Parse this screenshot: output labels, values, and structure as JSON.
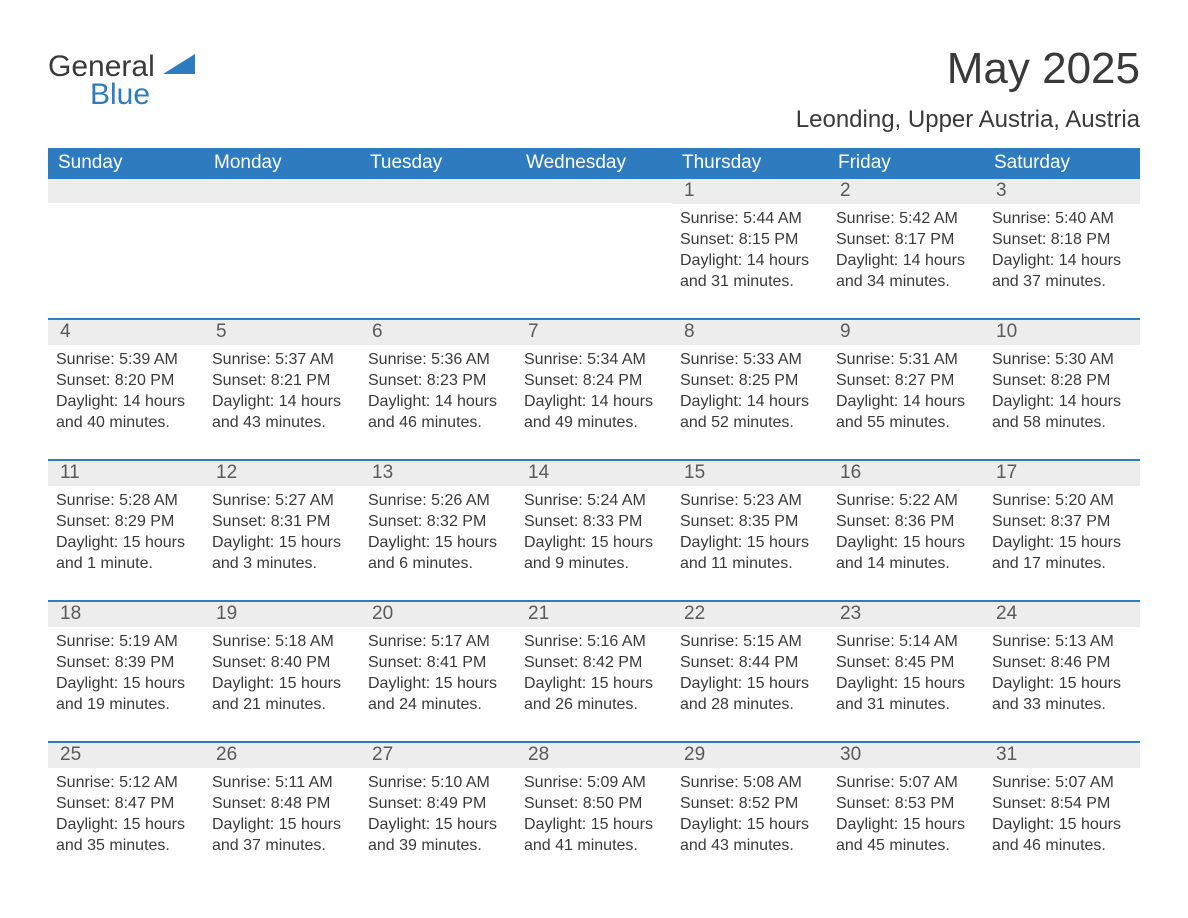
{
  "logo": {
    "word1": "General",
    "word2": "Blue",
    "tri_color": "#2e7cbf"
  },
  "title": "May 2025",
  "location": "Leonding, Upper Austria, Austria",
  "colors": {
    "header_bg": "#2e7cbf",
    "header_text": "#ffffff",
    "daynum_bg": "#ededed",
    "text": "#3a3a3a",
    "rule": "#2e7cbf",
    "page_bg": "#ffffff"
  },
  "layout": {
    "columns": 7,
    "rows": 5,
    "cell_font_size_pt": 12,
    "title_font_size_pt": 33,
    "location_font_size_pt": 18
  },
  "days_of_week": [
    "Sunday",
    "Monday",
    "Tuesday",
    "Wednesday",
    "Thursday",
    "Friday",
    "Saturday"
  ],
  "weeks": [
    [
      {
        "empty": true
      },
      {
        "empty": true
      },
      {
        "empty": true
      },
      {
        "empty": true
      },
      {
        "n": "1",
        "sunrise": "Sunrise: 5:44 AM",
        "sunset": "Sunset: 8:15 PM",
        "day1": "Daylight: 14 hours",
        "day2": "and 31 minutes."
      },
      {
        "n": "2",
        "sunrise": "Sunrise: 5:42 AM",
        "sunset": "Sunset: 8:17 PM",
        "day1": "Daylight: 14 hours",
        "day2": "and 34 minutes."
      },
      {
        "n": "3",
        "sunrise": "Sunrise: 5:40 AM",
        "sunset": "Sunset: 8:18 PM",
        "day1": "Daylight: 14 hours",
        "day2": "and 37 minutes."
      }
    ],
    [
      {
        "n": "4",
        "sunrise": "Sunrise: 5:39 AM",
        "sunset": "Sunset: 8:20 PM",
        "day1": "Daylight: 14 hours",
        "day2": "and 40 minutes."
      },
      {
        "n": "5",
        "sunrise": "Sunrise: 5:37 AM",
        "sunset": "Sunset: 8:21 PM",
        "day1": "Daylight: 14 hours",
        "day2": "and 43 minutes."
      },
      {
        "n": "6",
        "sunrise": "Sunrise: 5:36 AM",
        "sunset": "Sunset: 8:23 PM",
        "day1": "Daylight: 14 hours",
        "day2": "and 46 minutes."
      },
      {
        "n": "7",
        "sunrise": "Sunrise: 5:34 AM",
        "sunset": "Sunset: 8:24 PM",
        "day1": "Daylight: 14 hours",
        "day2": "and 49 minutes."
      },
      {
        "n": "8",
        "sunrise": "Sunrise: 5:33 AM",
        "sunset": "Sunset: 8:25 PM",
        "day1": "Daylight: 14 hours",
        "day2": "and 52 minutes."
      },
      {
        "n": "9",
        "sunrise": "Sunrise: 5:31 AM",
        "sunset": "Sunset: 8:27 PM",
        "day1": "Daylight: 14 hours",
        "day2": "and 55 minutes."
      },
      {
        "n": "10",
        "sunrise": "Sunrise: 5:30 AM",
        "sunset": "Sunset: 8:28 PM",
        "day1": "Daylight: 14 hours",
        "day2": "and 58 minutes."
      }
    ],
    [
      {
        "n": "11",
        "sunrise": "Sunrise: 5:28 AM",
        "sunset": "Sunset: 8:29 PM",
        "day1": "Daylight: 15 hours",
        "day2": "and 1 minute."
      },
      {
        "n": "12",
        "sunrise": "Sunrise: 5:27 AM",
        "sunset": "Sunset: 8:31 PM",
        "day1": "Daylight: 15 hours",
        "day2": "and 3 minutes."
      },
      {
        "n": "13",
        "sunrise": "Sunrise: 5:26 AM",
        "sunset": "Sunset: 8:32 PM",
        "day1": "Daylight: 15 hours",
        "day2": "and 6 minutes."
      },
      {
        "n": "14",
        "sunrise": "Sunrise: 5:24 AM",
        "sunset": "Sunset: 8:33 PM",
        "day1": "Daylight: 15 hours",
        "day2": "and 9 minutes."
      },
      {
        "n": "15",
        "sunrise": "Sunrise: 5:23 AM",
        "sunset": "Sunset: 8:35 PM",
        "day1": "Daylight: 15 hours",
        "day2": "and 11 minutes."
      },
      {
        "n": "16",
        "sunrise": "Sunrise: 5:22 AM",
        "sunset": "Sunset: 8:36 PM",
        "day1": "Daylight: 15 hours",
        "day2": "and 14 minutes."
      },
      {
        "n": "17",
        "sunrise": "Sunrise: 5:20 AM",
        "sunset": "Sunset: 8:37 PM",
        "day1": "Daylight: 15 hours",
        "day2": "and 17 minutes."
      }
    ],
    [
      {
        "n": "18",
        "sunrise": "Sunrise: 5:19 AM",
        "sunset": "Sunset: 8:39 PM",
        "day1": "Daylight: 15 hours",
        "day2": "and 19 minutes."
      },
      {
        "n": "19",
        "sunrise": "Sunrise: 5:18 AM",
        "sunset": "Sunset: 8:40 PM",
        "day1": "Daylight: 15 hours",
        "day2": "and 21 minutes."
      },
      {
        "n": "20",
        "sunrise": "Sunrise: 5:17 AM",
        "sunset": "Sunset: 8:41 PM",
        "day1": "Daylight: 15 hours",
        "day2": "and 24 minutes."
      },
      {
        "n": "21",
        "sunrise": "Sunrise: 5:16 AM",
        "sunset": "Sunset: 8:42 PM",
        "day1": "Daylight: 15 hours",
        "day2": "and 26 minutes."
      },
      {
        "n": "22",
        "sunrise": "Sunrise: 5:15 AM",
        "sunset": "Sunset: 8:44 PM",
        "day1": "Daylight: 15 hours",
        "day2": "and 28 minutes."
      },
      {
        "n": "23",
        "sunrise": "Sunrise: 5:14 AM",
        "sunset": "Sunset: 8:45 PM",
        "day1": "Daylight: 15 hours",
        "day2": "and 31 minutes."
      },
      {
        "n": "24",
        "sunrise": "Sunrise: 5:13 AM",
        "sunset": "Sunset: 8:46 PM",
        "day1": "Daylight: 15 hours",
        "day2": "and 33 minutes."
      }
    ],
    [
      {
        "n": "25",
        "sunrise": "Sunrise: 5:12 AM",
        "sunset": "Sunset: 8:47 PM",
        "day1": "Daylight: 15 hours",
        "day2": "and 35 minutes."
      },
      {
        "n": "26",
        "sunrise": "Sunrise: 5:11 AM",
        "sunset": "Sunset: 8:48 PM",
        "day1": "Daylight: 15 hours",
        "day2": "and 37 minutes."
      },
      {
        "n": "27",
        "sunrise": "Sunrise: 5:10 AM",
        "sunset": "Sunset: 8:49 PM",
        "day1": "Daylight: 15 hours",
        "day2": "and 39 minutes."
      },
      {
        "n": "28",
        "sunrise": "Sunrise: 5:09 AM",
        "sunset": "Sunset: 8:50 PM",
        "day1": "Daylight: 15 hours",
        "day2": "and 41 minutes."
      },
      {
        "n": "29",
        "sunrise": "Sunrise: 5:08 AM",
        "sunset": "Sunset: 8:52 PM",
        "day1": "Daylight: 15 hours",
        "day2": "and 43 minutes."
      },
      {
        "n": "30",
        "sunrise": "Sunrise: 5:07 AM",
        "sunset": "Sunset: 8:53 PM",
        "day1": "Daylight: 15 hours",
        "day2": "and 45 minutes."
      },
      {
        "n": "31",
        "sunrise": "Sunrise: 5:07 AM",
        "sunset": "Sunset: 8:54 PM",
        "day1": "Daylight: 15 hours",
        "day2": "and 46 minutes."
      }
    ]
  ]
}
